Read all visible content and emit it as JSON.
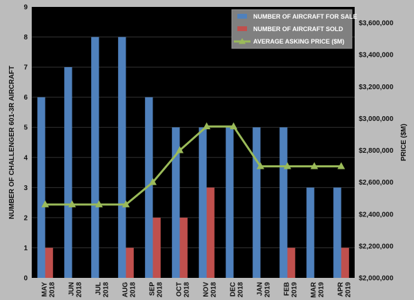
{
  "chart_data": {
    "type": "bar",
    "categories": [
      [
        "MAY",
        "2018"
      ],
      [
        "JUN",
        "2018"
      ],
      [
        "JUL",
        "2018"
      ],
      [
        "AUG",
        "2018"
      ],
      [
        "SEP",
        "2018"
      ],
      [
        "OCT",
        "2018"
      ],
      [
        "NOV",
        "2018"
      ],
      [
        "DEC",
        "2018"
      ],
      [
        "JAN",
        "2019"
      ],
      [
        "FEB",
        "2019"
      ],
      [
        "MAR",
        "2019"
      ],
      [
        "APR",
        "2019"
      ]
    ],
    "series": [
      {
        "name": "NUMBER OF AIRCRAFT FOR SALE",
        "type": "bar",
        "axis": "left",
        "color": "#4f81bd",
        "values": [
          6,
          7,
          8,
          8,
          6,
          5,
          5,
          5,
          5,
          5,
          3,
          3
        ]
      },
      {
        "name": "NUMBER OF AIRCRAFT SOLD",
        "type": "bar",
        "axis": "left",
        "color": "#c0504d",
        "values": [
          1,
          0,
          0,
          1,
          2,
          2,
          3,
          0,
          0,
          1,
          0,
          1
        ]
      },
      {
        "name": "AVERAGE ASKING PRICE ($M)",
        "type": "line",
        "axis": "right",
        "color": "#9bbb59",
        "marker": "triangle",
        "values": [
          2460000,
          2460000,
          2460000,
          2460000,
          2600000,
          2800000,
          2950000,
          2950000,
          2700000,
          2700000,
          2700000,
          2700000
        ]
      }
    ],
    "ylabel": "NUMBER OF CHALLENGER 601-3R  AIRCRAFT",
    "y2label": "PRICE ($M)",
    "ylim": [
      0,
      9
    ],
    "yticks": [
      0,
      1,
      2,
      3,
      4,
      5,
      6,
      7,
      8,
      9
    ],
    "y2lim": [
      2000000,
      3700000
    ],
    "y2ticks": [
      {
        "value": 2000000,
        "label": "$2,000,000"
      },
      {
        "value": 2200000,
        "label": "$2,200,000"
      },
      {
        "value": 2400000,
        "label": "$2,400,000"
      },
      {
        "value": 2600000,
        "label": "$2,600,000"
      },
      {
        "value": 2800000,
        "label": "$2,800,000"
      },
      {
        "value": 3000000,
        "label": "$3,000,000"
      },
      {
        "value": 3200000,
        "label": "$3,200,000"
      },
      {
        "value": 3400000,
        "label": "$3,400,000"
      },
      {
        "value": 3600000,
        "label": "$3,600,000"
      }
    ],
    "grid": true,
    "legend": "top-right",
    "plot_background": "#000000",
    "gridline_color": "#333333"
  }
}
